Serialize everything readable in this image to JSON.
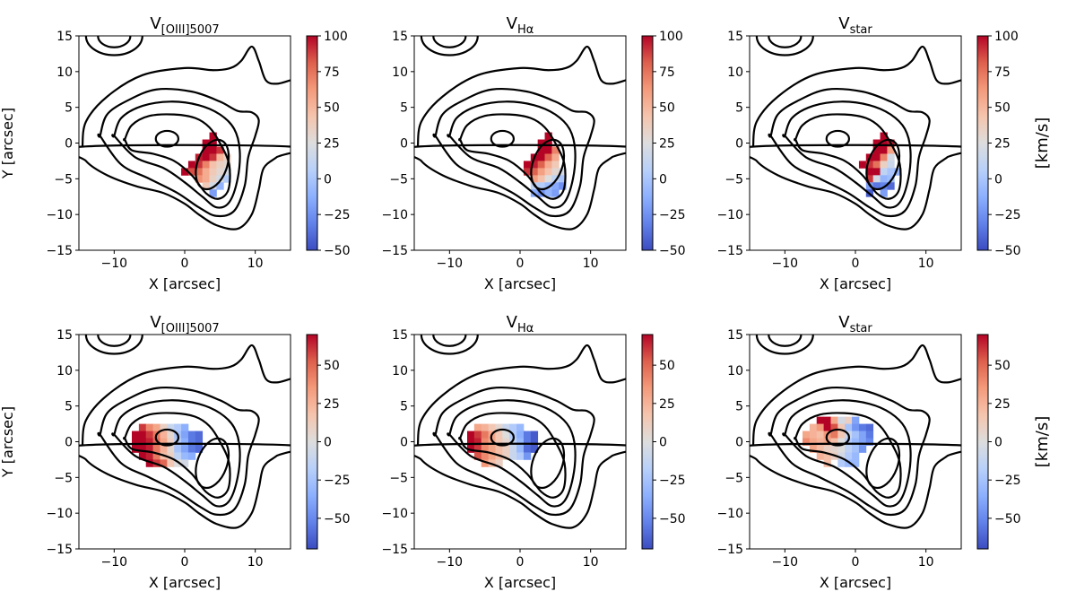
{
  "chart_data": [
    {
      "type": "heatmap",
      "title": "V",
      "title_sub": "[OIII]5007",
      "xlabel": "X [arcsec]",
      "ylabel": "Y [arcsec]",
      "xlim": [
        -15,
        15
      ],
      "ylim": [
        -15,
        15
      ],
      "xticks": [
        -10,
        0,
        10
      ],
      "yticks": [
        15,
        10,
        5,
        0,
        -5,
        -10,
        -15
      ],
      "colorbar": {
        "range": [
          -50,
          100
        ],
        "ticks": [
          100,
          75,
          50,
          25,
          0,
          -25,
          -50
        ],
        "label": ""
      },
      "pixels": [
        [
          4,
          1,
          100
        ],
        [
          3,
          0,
          100
        ],
        [
          3,
          -1,
          100
        ],
        [
          4,
          0,
          100
        ],
        [
          4,
          -1,
          100
        ],
        [
          5,
          -1,
          90
        ],
        [
          2,
          -2,
          95
        ],
        [
          3,
          -2,
          100
        ],
        [
          4,
          -2,
          90
        ],
        [
          5,
          -2,
          50
        ],
        [
          6,
          -2,
          35
        ],
        [
          1,
          -3,
          100
        ],
        [
          2,
          -3,
          90
        ],
        [
          3,
          -3,
          70
        ],
        [
          4,
          -3,
          45
        ],
        [
          5,
          -3,
          35
        ],
        [
          6,
          -3,
          30
        ],
        [
          0,
          -4,
          100
        ],
        [
          1,
          -4,
          85
        ],
        [
          2,
          -4,
          75
        ],
        [
          3,
          -4,
          55
        ],
        [
          4,
          -4,
          40
        ],
        [
          5,
          -4,
          30
        ],
        [
          6,
          -4,
          20
        ],
        [
          2,
          -5,
          65
        ],
        [
          3,
          -5,
          55
        ],
        [
          4,
          -5,
          35
        ],
        [
          5,
          -5,
          20
        ],
        [
          6,
          -5,
          5
        ],
        [
          3,
          -6,
          40
        ],
        [
          4,
          -6,
          20
        ],
        [
          5,
          -6,
          -10
        ],
        [
          4,
          -7,
          -20
        ]
      ]
    },
    {
      "type": "heatmap",
      "title": "V",
      "title_sub": "Hα",
      "xlabel": "X [arcsec]",
      "ylabel": "",
      "xlim": [
        -15,
        15
      ],
      "ylim": [
        -15,
        15
      ],
      "xticks": [
        -10,
        0,
        10
      ],
      "yticks": [
        15,
        10,
        5,
        0,
        -5,
        -10,
        -15
      ],
      "colorbar": {
        "range": [
          -50,
          100
        ],
        "ticks": [
          100,
          75,
          50,
          25,
          0,
          -25,
          -50
        ],
        "label": ""
      },
      "pixels": [
        [
          4,
          1,
          100
        ],
        [
          3,
          0,
          100
        ],
        [
          4,
          0,
          100
        ],
        [
          3,
          -1,
          100
        ],
        [
          4,
          -1,
          100
        ],
        [
          5,
          -1,
          70
        ],
        [
          2,
          -2,
          100
        ],
        [
          3,
          -2,
          100
        ],
        [
          4,
          -2,
          80
        ],
        [
          5,
          -2,
          55
        ],
        [
          1,
          -3,
          100
        ],
        [
          2,
          -3,
          95
        ],
        [
          3,
          -3,
          80
        ],
        [
          4,
          -3,
          55
        ],
        [
          5,
          -3,
          40
        ],
        [
          1,
          -4,
          90
        ],
        [
          2,
          -4,
          80
        ],
        [
          3,
          -4,
          60
        ],
        [
          4,
          -4,
          45
        ],
        [
          5,
          -4,
          30
        ],
        [
          6,
          -4,
          20
        ],
        [
          2,
          -5,
          60
        ],
        [
          3,
          -5,
          45
        ],
        [
          4,
          -5,
          25
        ],
        [
          5,
          -5,
          10
        ],
        [
          6,
          -5,
          0
        ],
        [
          2,
          -6,
          10
        ],
        [
          3,
          -6,
          5
        ],
        [
          4,
          -6,
          -5
        ],
        [
          5,
          -6,
          -15
        ],
        [
          6,
          -6,
          -25
        ],
        [
          2,
          -7,
          -15
        ],
        [
          3,
          -7,
          -25
        ],
        [
          4,
          -7,
          -10
        ],
        [
          5,
          -7,
          -20
        ]
      ]
    },
    {
      "type": "heatmap",
      "title": "V",
      "title_sub": "star",
      "xlabel": "X [arcsec]",
      "ylabel": "",
      "xlim": [
        -15,
        15
      ],
      "ylim": [
        -15,
        15
      ],
      "xticks": [
        -10,
        0,
        10
      ],
      "yticks": [
        15,
        10,
        5,
        0,
        -5,
        -10,
        -15
      ],
      "colorbar": {
        "range": [
          -50,
          100
        ],
        "ticks": [
          100,
          75,
          50,
          25,
          0,
          -25,
          -50
        ],
        "label": "[km/s]"
      },
      "pixels": [
        [
          4,
          1,
          100
        ],
        [
          3,
          0,
          100
        ],
        [
          4,
          0,
          100
        ],
        [
          5,
          0,
          95
        ],
        [
          3,
          -1,
          100
        ],
        [
          4,
          -1,
          100
        ],
        [
          5,
          -1,
          60
        ],
        [
          2,
          -2,
          100
        ],
        [
          3,
          -2,
          100
        ],
        [
          4,
          -2,
          70
        ],
        [
          5,
          -2,
          20
        ],
        [
          1,
          -3,
          100
        ],
        [
          2,
          -3,
          90
        ],
        [
          3,
          -3,
          75
        ],
        [
          4,
          -3,
          35
        ],
        [
          5,
          -3,
          15
        ],
        [
          2,
          -4,
          100
        ],
        [
          3,
          -4,
          100
        ],
        [
          4,
          -4,
          10
        ],
        [
          5,
          -4,
          0
        ],
        [
          6,
          -4,
          -10
        ],
        [
          2,
          -5,
          90
        ],
        [
          3,
          -5,
          20
        ],
        [
          4,
          -5,
          -10
        ],
        [
          5,
          -5,
          -5
        ],
        [
          2,
          -6,
          -20
        ],
        [
          3,
          -6,
          -35
        ],
        [
          4,
          -6,
          -30
        ],
        [
          5,
          -6,
          -40
        ],
        [
          2,
          -7,
          -45
        ],
        [
          4,
          -7,
          -20
        ]
      ]
    },
    {
      "type": "heatmap",
      "title": "V",
      "title_sub": "[OIII]5007",
      "xlabel": "X [arcsec]",
      "ylabel": "Y [arcsec]",
      "xlim": [
        -15,
        15
      ],
      "ylim": [
        -15,
        15
      ],
      "xticks": [
        -10,
        0,
        10
      ],
      "yticks": [
        15,
        10,
        5,
        0,
        -5,
        -10,
        -15
      ],
      "colorbar": {
        "range": [
          -70,
          70
        ],
        "ticks": [
          50,
          25,
          0,
          -25,
          -50
        ],
        "label": ""
      },
      "pixels": [
        [
          -6,
          2,
          60
        ],
        [
          -5,
          2,
          40
        ],
        [
          -4,
          2,
          30
        ],
        [
          -3,
          2,
          10
        ],
        [
          -2,
          2,
          -10
        ],
        [
          -1,
          2,
          -20
        ],
        [
          0,
          2,
          -35
        ],
        [
          -7,
          1,
          70
        ],
        [
          -6,
          1,
          70
        ],
        [
          -5,
          1,
          60
        ],
        [
          -4,
          1,
          45
        ],
        [
          -3,
          1,
          25
        ],
        [
          -2,
          1,
          5
        ],
        [
          -1,
          1,
          -25
        ],
        [
          0,
          1,
          -40
        ],
        [
          1,
          1,
          -55
        ],
        [
          2,
          1,
          -60
        ],
        [
          -7,
          0,
          70
        ],
        [
          -6,
          0,
          70
        ],
        [
          -5,
          0,
          65
        ],
        [
          -4,
          0,
          50
        ],
        [
          -3,
          0,
          30
        ],
        [
          -2,
          0,
          10
        ],
        [
          -1,
          0,
          -20
        ],
        [
          0,
          0,
          -35
        ],
        [
          1,
          0,
          -55
        ],
        [
          2,
          0,
          -60
        ],
        [
          -7,
          -1,
          70
        ],
        [
          -6,
          -1,
          70
        ],
        [
          -5,
          -1,
          65
        ],
        [
          -4,
          -1,
          45
        ],
        [
          -3,
          -1,
          25
        ],
        [
          -2,
          -1,
          5
        ],
        [
          -1,
          -1,
          -25
        ],
        [
          0,
          -1,
          -40
        ],
        [
          1,
          -1,
          -55
        ],
        [
          2,
          -1,
          -60
        ],
        [
          -6,
          -2,
          70
        ],
        [
          -5,
          -2,
          65
        ],
        [
          -4,
          -2,
          45
        ],
        [
          -3,
          -2,
          20
        ],
        [
          -2,
          -2,
          10
        ],
        [
          -1,
          -2,
          -15
        ],
        [
          0,
          -2,
          -30
        ],
        [
          1,
          -2,
          -35
        ],
        [
          -5,
          -3,
          70
        ],
        [
          -4,
          -3,
          60
        ],
        [
          -3,
          -3,
          50
        ],
        [
          -2,
          -3,
          15
        ],
        [
          -1,
          -3,
          0
        ],
        [
          0,
          -3,
          -5
        ]
      ]
    },
    {
      "type": "heatmap",
      "title": "V",
      "title_sub": "Hα",
      "xlabel": "X [arcsec]",
      "ylabel": "",
      "xlim": [
        -15,
        15
      ],
      "ylim": [
        -15,
        15
      ],
      "xticks": [
        -10,
        0,
        10
      ],
      "yticks": [
        15,
        10,
        5,
        0,
        -5,
        -10,
        -15
      ],
      "colorbar": {
        "range": [
          -70,
          70
        ],
        "ticks": [
          50,
          25,
          0,
          -25,
          -50
        ],
        "label": ""
      },
      "pixels": [
        [
          -6,
          2,
          30
        ],
        [
          -5,
          2,
          25
        ],
        [
          -4,
          2,
          15
        ],
        [
          -3,
          2,
          5
        ],
        [
          -2,
          2,
          -10
        ],
        [
          -1,
          2,
          -20
        ],
        [
          0,
          2,
          -30
        ],
        [
          -7,
          1,
          70
        ],
        [
          -6,
          1,
          60
        ],
        [
          -5,
          1,
          45
        ],
        [
          -4,
          1,
          30
        ],
        [
          -3,
          1,
          15
        ],
        [
          -2,
          1,
          0
        ],
        [
          -1,
          1,
          -20
        ],
        [
          0,
          1,
          -35
        ],
        [
          1,
          1,
          -55
        ],
        [
          2,
          1,
          -65
        ],
        [
          -7,
          0,
          70
        ],
        [
          -6,
          0,
          65
        ],
        [
          -5,
          0,
          40
        ],
        [
          -4,
          0,
          30
        ],
        [
          -3,
          0,
          15
        ],
        [
          -2,
          0,
          5
        ],
        [
          -1,
          0,
          -15
        ],
        [
          0,
          0,
          -30
        ],
        [
          1,
          0,
          -55
        ],
        [
          2,
          0,
          -65
        ],
        [
          -7,
          -1,
          70
        ],
        [
          -6,
          -1,
          60
        ],
        [
          -5,
          -1,
          40
        ],
        [
          -4,
          -1,
          30
        ],
        [
          -3,
          -1,
          20
        ],
        [
          -2,
          -1,
          10
        ],
        [
          -1,
          -1,
          -10
        ],
        [
          0,
          -1,
          -30
        ],
        [
          1,
          -1,
          -60
        ],
        [
          2,
          -1,
          -65
        ],
        [
          -6,
          -2,
          55
        ],
        [
          -5,
          -2,
          40
        ],
        [
          -4,
          -2,
          30
        ],
        [
          -3,
          -2,
          20
        ],
        [
          -2,
          -2,
          10
        ],
        [
          -1,
          -2,
          -10
        ],
        [
          0,
          -2,
          -20
        ],
        [
          1,
          -2,
          -45
        ],
        [
          -5,
          -3,
          35
        ],
        [
          -4,
          -3,
          20
        ],
        [
          -3,
          -3,
          10
        ]
      ]
    },
    {
      "type": "heatmap",
      "title": "V",
      "title_sub": "star",
      "xlabel": "X [arcsec]",
      "ylabel": "",
      "xlim": [
        -15,
        15
      ],
      "ylim": [
        -15,
        15
      ],
      "xticks": [
        -10,
        0,
        10
      ],
      "yticks": [
        15,
        10,
        5,
        0,
        -5,
        -10,
        -15
      ],
      "colorbar": {
        "range": [
          -70,
          70
        ],
        "ticks": [
          50,
          25,
          0,
          -25,
          -50
        ],
        "label": "[km/s]"
      },
      "pixels": [
        [
          -5,
          3,
          70
        ],
        [
          -4,
          3,
          70
        ],
        [
          -3,
          3,
          30
        ],
        [
          -2,
          3,
          -5
        ],
        [
          -1,
          3,
          10
        ],
        [
          0,
          3,
          -40
        ],
        [
          -6,
          2,
          25
        ],
        [
          -5,
          2,
          35
        ],
        [
          -4,
          2,
          70
        ],
        [
          -3,
          2,
          55
        ],
        [
          -2,
          2,
          15
        ],
        [
          -1,
          2,
          -25
        ],
        [
          0,
          2,
          -45
        ],
        [
          1,
          2,
          -55
        ],
        [
          2,
          2,
          -60
        ],
        [
          -7,
          1,
          30
        ],
        [
          -6,
          1,
          25
        ],
        [
          -5,
          1,
          20
        ],
        [
          -4,
          1,
          35
        ],
        [
          -3,
          1,
          45
        ],
        [
          -2,
          1,
          15
        ],
        [
          -1,
          1,
          -10
        ],
        [
          0,
          1,
          -25
        ],
        [
          1,
          1,
          -40
        ],
        [
          2,
          1,
          -55
        ],
        [
          -7,
          0,
          40
        ],
        [
          -6,
          0,
          30
        ],
        [
          -5,
          0,
          25
        ],
        [
          -4,
          0,
          30
        ],
        [
          -3,
          0,
          20
        ],
        [
          -2,
          0,
          0
        ],
        [
          -1,
          0,
          -20
        ],
        [
          0,
          0,
          -30
        ],
        [
          1,
          0,
          -40
        ],
        [
          2,
          0,
          -50
        ],
        [
          -6,
          -1,
          30
        ],
        [
          -5,
          -1,
          20
        ],
        [
          -4,
          -1,
          10
        ],
        [
          -3,
          -1,
          5
        ],
        [
          -2,
          -1,
          0
        ],
        [
          -1,
          -1,
          -15
        ],
        [
          0,
          -1,
          -25
        ],
        [
          1,
          -1,
          -45
        ],
        [
          -5,
          -2,
          25
        ],
        [
          -4,
          -2,
          20
        ],
        [
          -3,
          -2,
          10
        ],
        [
          -2,
          -2,
          -5
        ],
        [
          -1,
          -2,
          -20
        ],
        [
          0,
          -2,
          -30
        ],
        [
          -4,
          -3,
          20
        ],
        [
          -2,
          -3,
          -20
        ],
        [
          -1,
          -3,
          -30
        ],
        [
          0,
          -3,
          -30
        ]
      ]
    }
  ]
}
